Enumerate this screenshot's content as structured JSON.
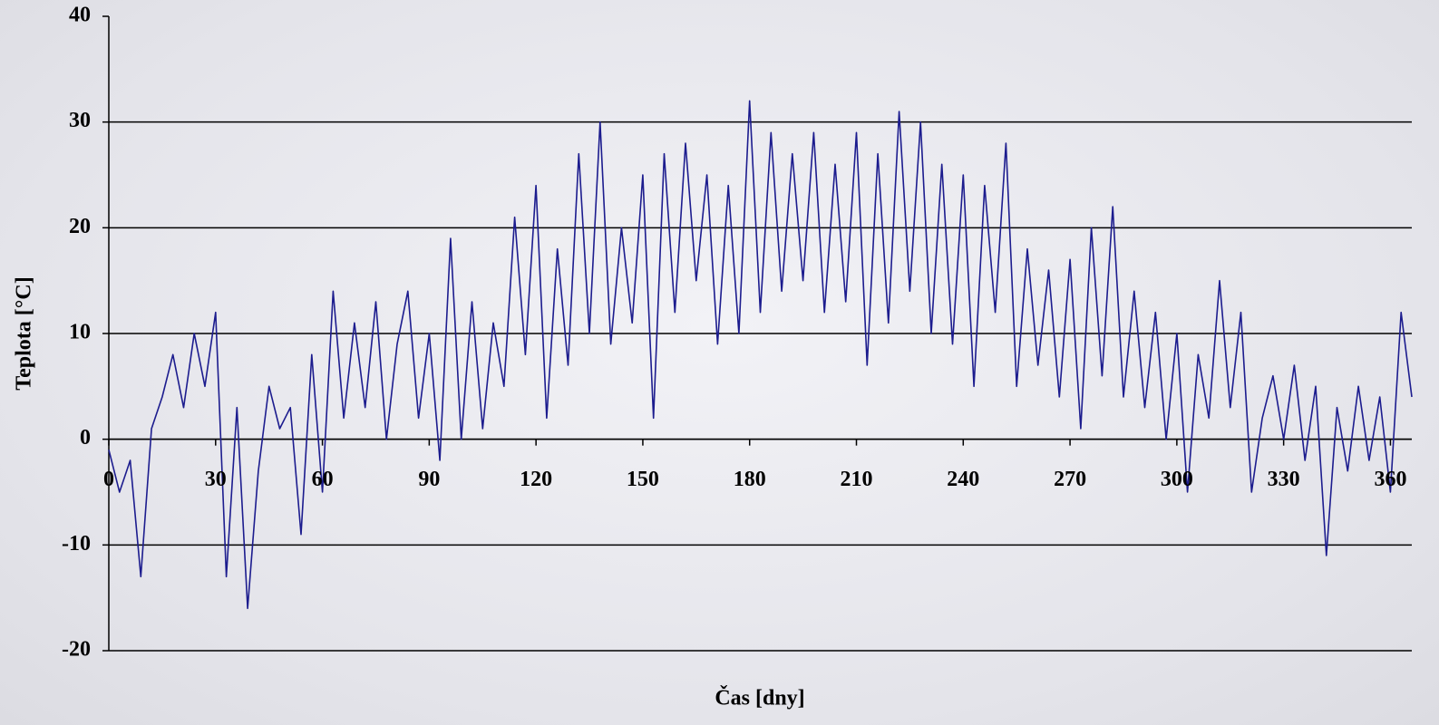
{
  "chart_data": {
    "type": "line",
    "x_label": "Čas [dny]",
    "y_label": "Teplota [°C]",
    "xlim": [
      0,
      366
    ],
    "xticks": [
      0,
      30,
      60,
      90,
      120,
      150,
      180,
      210,
      240,
      270,
      300,
      330,
      360
    ],
    "ylim": [
      -20,
      40
    ],
    "yticks": [
      -20,
      -10,
      0,
      10,
      20,
      30,
      40
    ],
    "grid": true,
    "color": "#1c1c8e",
    "x": [
      0,
      3,
      6,
      9,
      12,
      15,
      18,
      21,
      24,
      27,
      30,
      33,
      36,
      39,
      42,
      45,
      48,
      51,
      54,
      57,
      60,
      63,
      66,
      69,
      72,
      75,
      78,
      81,
      84,
      87,
      90,
      93,
      96,
      99,
      102,
      105,
      108,
      111,
      114,
      117,
      120,
      123,
      126,
      129,
      132,
      135,
      138,
      141,
      144,
      147,
      150,
      153,
      156,
      159,
      162,
      165,
      168,
      171,
      174,
      177,
      180,
      183,
      186,
      189,
      192,
      195,
      198,
      201,
      204,
      207,
      210,
      213,
      216,
      219,
      222,
      225,
      228,
      231,
      234,
      237,
      240,
      243,
      246,
      249,
      252,
      255,
      258,
      261,
      264,
      267,
      270,
      273,
      276,
      279,
      282,
      285,
      288,
      291,
      294,
      297,
      300,
      303,
      306,
      309,
      312,
      315,
      318,
      321,
      324,
      327,
      330,
      333,
      336,
      339,
      342,
      345,
      348,
      351,
      354,
      357,
      360,
      363,
      366
    ],
    "values": [
      -1,
      -5,
      -2,
      -13,
      1,
      4,
      8,
      3,
      10,
      5,
      12,
      -13,
      3,
      -16,
      -3,
      5,
      1,
      3,
      -9,
      8,
      -5,
      14,
      2,
      11,
      3,
      13,
      0,
      9,
      14,
      2,
      10,
      -2,
      19,
      0,
      13,
      1,
      11,
      5,
      21,
      8,
      24,
      2,
      18,
      7,
      27,
      10,
      30,
      9,
      20,
      11,
      25,
      2,
      27,
      12,
      28,
      15,
      25,
      9,
      24,
      10,
      32,
      12,
      29,
      14,
      27,
      15,
      29,
      12,
      26,
      13,
      29,
      7,
      27,
      11,
      31,
      14,
      30,
      10,
      26,
      9,
      25,
      5,
      24,
      12,
      28,
      5,
      18,
      7,
      16,
      4,
      17,
      1,
      20,
      6,
      22,
      4,
      14,
      3,
      12,
      0,
      10,
      -5,
      8,
      2,
      15,
      3,
      12,
      -5,
      2,
      6,
      0,
      7,
      -2,
      5,
      -11,
      3,
      -3,
      5,
      -2,
      4,
      -5,
      12,
      4
    ]
  }
}
